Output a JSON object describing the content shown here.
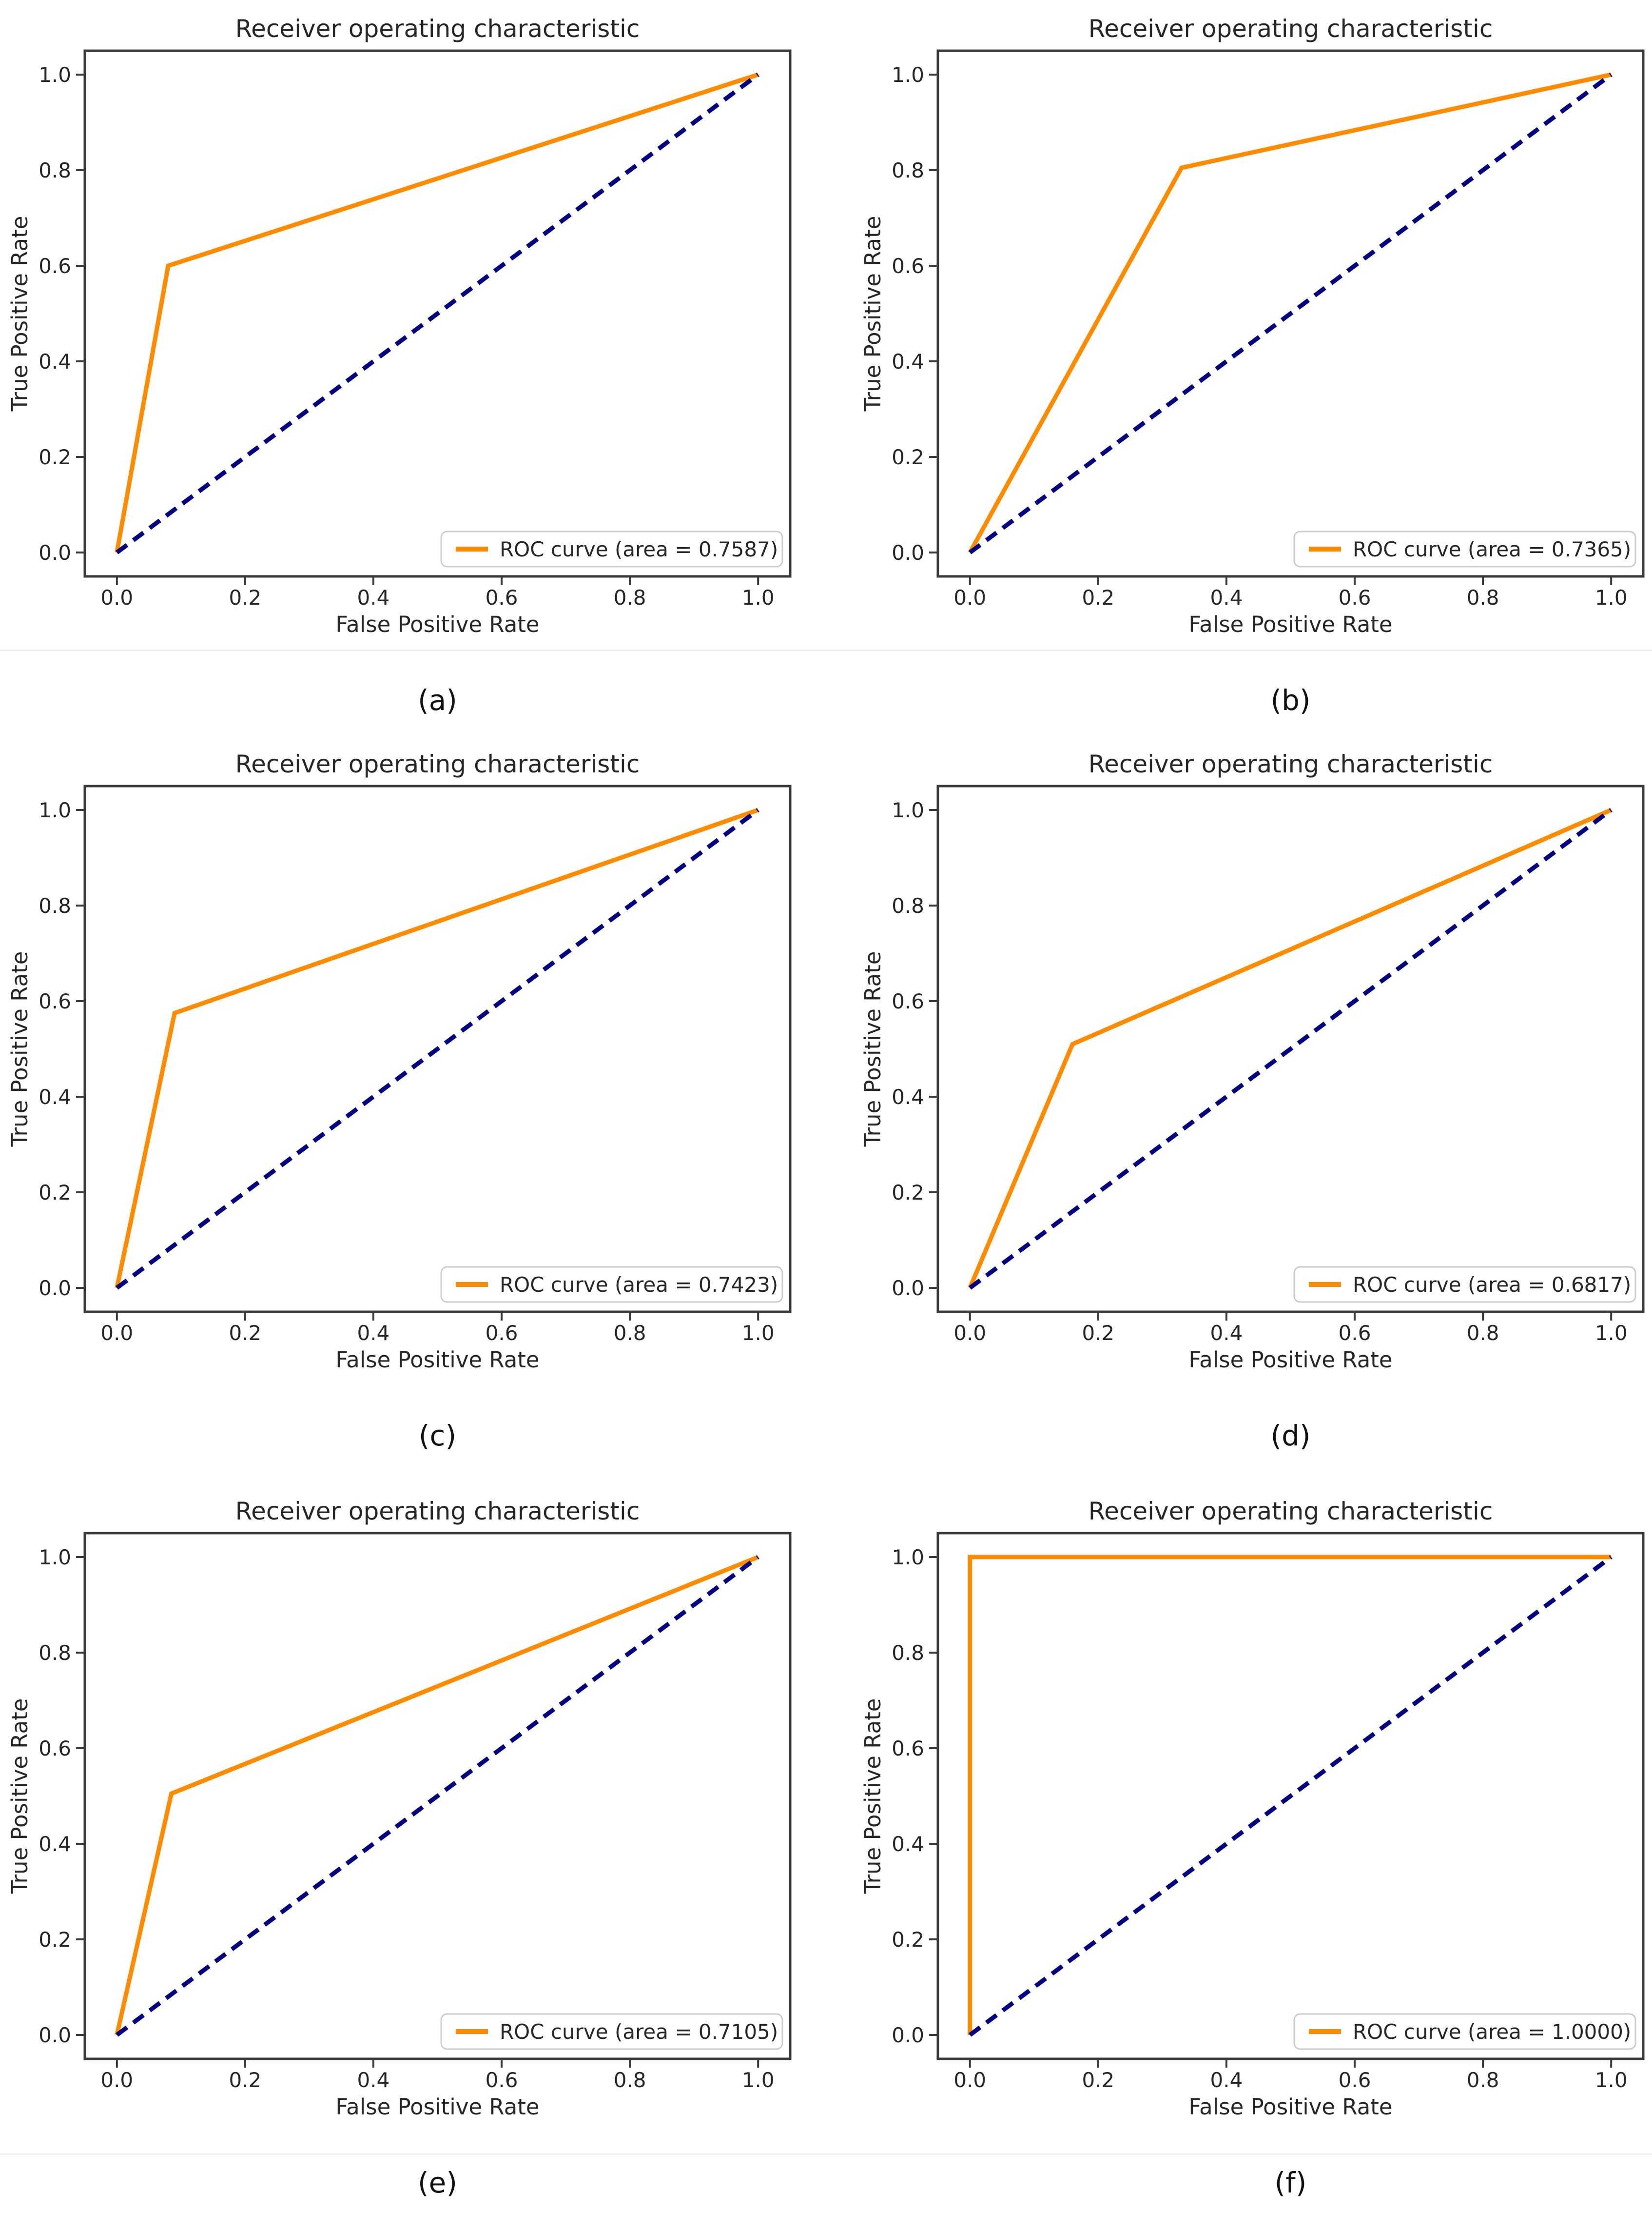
{
  "page": {
    "background": "#ffffff",
    "separator_color": "#efefef"
  },
  "styles": {
    "roc_color": "#ff8c00",
    "chance_color": "#000080",
    "spine_color": "#3a3a3a",
    "text_color": "#262626",
    "legend_border": "#cccccc",
    "legend_bg": "#ffffff"
  },
  "chart_data": [
    {
      "type": "line",
      "caption": "(a)",
      "title": "Receiver operating characteristic",
      "xlabel": "False Positive Rate",
      "ylabel": "True Positive Rate",
      "xlim": [
        -0.05,
        1.05
      ],
      "ylim": [
        -0.05,
        1.05
      ],
      "grid": false,
      "xticks": [
        "0.0",
        "0.2",
        "0.4",
        "0.6",
        "0.8",
        "1.0"
      ],
      "yticks": [
        "0.0",
        "0.2",
        "0.4",
        "0.6",
        "0.8",
        "1.0"
      ],
      "auc": 0.7587,
      "legend": {
        "label": "ROC curve (area = 0.7587)",
        "position": "lower right"
      },
      "series": [
        {
          "name": "ROC curve",
          "color": "#ff8c00",
          "style": "solid",
          "points": [
            [
              0,
              0
            ],
            [
              0.08,
              0.6
            ],
            [
              1,
              1
            ]
          ]
        },
        {
          "name": "Chance",
          "color": "#000080",
          "style": "dashed",
          "points": [
            [
              0,
              0
            ],
            [
              1,
              1
            ]
          ]
        }
      ]
    },
    {
      "type": "line",
      "caption": "(b)",
      "title": "Receiver operating characteristic",
      "xlabel": "False Positive Rate",
      "ylabel": "True Positive Rate",
      "xlim": [
        -0.05,
        1.05
      ],
      "ylim": [
        -0.05,
        1.05
      ],
      "grid": false,
      "xticks": [
        "0.0",
        "0.2",
        "0.4",
        "0.6",
        "0.8",
        "1.0"
      ],
      "yticks": [
        "0.0",
        "0.2",
        "0.4",
        "0.6",
        "0.8",
        "1.0"
      ],
      "auc": 0.7365,
      "legend": {
        "label": "ROC curve (area = 0.7365)",
        "position": "lower right"
      },
      "series": [
        {
          "name": "ROC curve",
          "color": "#ff8c00",
          "style": "solid",
          "points": [
            [
              0,
              0
            ],
            [
              0.33,
              0.805
            ],
            [
              1,
              1
            ]
          ]
        },
        {
          "name": "Chance",
          "color": "#000080",
          "style": "dashed",
          "points": [
            [
              0,
              0
            ],
            [
              1,
              1
            ]
          ]
        }
      ]
    },
    {
      "type": "line",
      "caption": "(c)",
      "title": "Receiver operating characteristic",
      "xlabel": "False Positive Rate",
      "ylabel": "True Positive Rate",
      "xlim": [
        -0.05,
        1.05
      ],
      "ylim": [
        -0.05,
        1.05
      ],
      "grid": false,
      "xticks": [
        "0.0",
        "0.2",
        "0.4",
        "0.6",
        "0.8",
        "1.0"
      ],
      "yticks": [
        "0.0",
        "0.2",
        "0.4",
        "0.6",
        "0.8",
        "1.0"
      ],
      "auc": 0.7423,
      "legend": {
        "label": "ROC curve (area = 0.7423)",
        "position": "lower right"
      },
      "series": [
        {
          "name": "ROC curve",
          "color": "#ff8c00",
          "style": "solid",
          "points": [
            [
              0,
              0
            ],
            [
              0.09,
              0.575
            ],
            [
              1,
              1
            ]
          ]
        },
        {
          "name": "Chance",
          "color": "#000080",
          "style": "dashed",
          "points": [
            [
              0,
              0
            ],
            [
              1,
              1
            ]
          ]
        }
      ]
    },
    {
      "type": "line",
      "caption": "(d)",
      "title": "Receiver operating characteristic",
      "xlabel": "False Positive Rate",
      "ylabel": "True Positive Rate",
      "xlim": [
        -0.05,
        1.05
      ],
      "ylim": [
        -0.05,
        1.05
      ],
      "grid": false,
      "xticks": [
        "0.0",
        "0.2",
        "0.4",
        "0.6",
        "0.8",
        "1.0"
      ],
      "yticks": [
        "0.0",
        "0.2",
        "0.4",
        "0.6",
        "0.8",
        "1.0"
      ],
      "auc": 0.6817,
      "legend": {
        "label": "ROC curve (area = 0.6817)",
        "position": "lower right"
      },
      "series": [
        {
          "name": "ROC curve",
          "color": "#ff8c00",
          "style": "solid",
          "points": [
            [
              0,
              0
            ],
            [
              0.16,
              0.51
            ],
            [
              1,
              1
            ]
          ]
        },
        {
          "name": "Chance",
          "color": "#000080",
          "style": "dashed",
          "points": [
            [
              0,
              0
            ],
            [
              1,
              1
            ]
          ]
        }
      ]
    },
    {
      "type": "line",
      "caption": "(e)",
      "title": "Receiver operating characteristic",
      "xlabel": "False Positive Rate",
      "ylabel": "True Positive Rate",
      "xlim": [
        -0.05,
        1.05
      ],
      "ylim": [
        -0.05,
        1.05
      ],
      "grid": false,
      "xticks": [
        "0.0",
        "0.2",
        "0.4",
        "0.6",
        "0.8",
        "1.0"
      ],
      "yticks": [
        "0.0",
        "0.2",
        "0.4",
        "0.6",
        "0.8",
        "1.0"
      ],
      "auc": 0.7105,
      "legend": {
        "label": "ROC curve (area = 0.7105)",
        "position": "lower right"
      },
      "series": [
        {
          "name": "ROC curve",
          "color": "#ff8c00",
          "style": "solid",
          "points": [
            [
              0,
              0
            ],
            [
              0.085,
              0.505
            ],
            [
              1,
              1
            ]
          ]
        },
        {
          "name": "Chance",
          "color": "#000080",
          "style": "dashed",
          "points": [
            [
              0,
              0
            ],
            [
              1,
              1
            ]
          ]
        }
      ]
    },
    {
      "type": "line",
      "caption": "(f)",
      "title": "Receiver operating characteristic",
      "xlabel": "False Positive Rate",
      "ylabel": "True Positive Rate",
      "xlim": [
        -0.05,
        1.05
      ],
      "ylim": [
        -0.05,
        1.05
      ],
      "grid": false,
      "xticks": [
        "0.0",
        "0.2",
        "0.4",
        "0.6",
        "0.8",
        "1.0"
      ],
      "yticks": [
        "0.0",
        "0.2",
        "0.4",
        "0.6",
        "0.8",
        "1.0"
      ],
      "auc": 1.0,
      "legend": {
        "label": "ROC curve (area = 1.0000)",
        "position": "lower right"
      },
      "series": [
        {
          "name": "ROC curve",
          "color": "#ff8c00",
          "style": "solid",
          "points": [
            [
              0,
              0
            ],
            [
              0,
              1
            ],
            [
              1,
              1
            ]
          ]
        },
        {
          "name": "Chance",
          "color": "#000080",
          "style": "dashed",
          "points": [
            [
              0,
              0
            ],
            [
              1,
              1
            ]
          ]
        }
      ]
    }
  ]
}
